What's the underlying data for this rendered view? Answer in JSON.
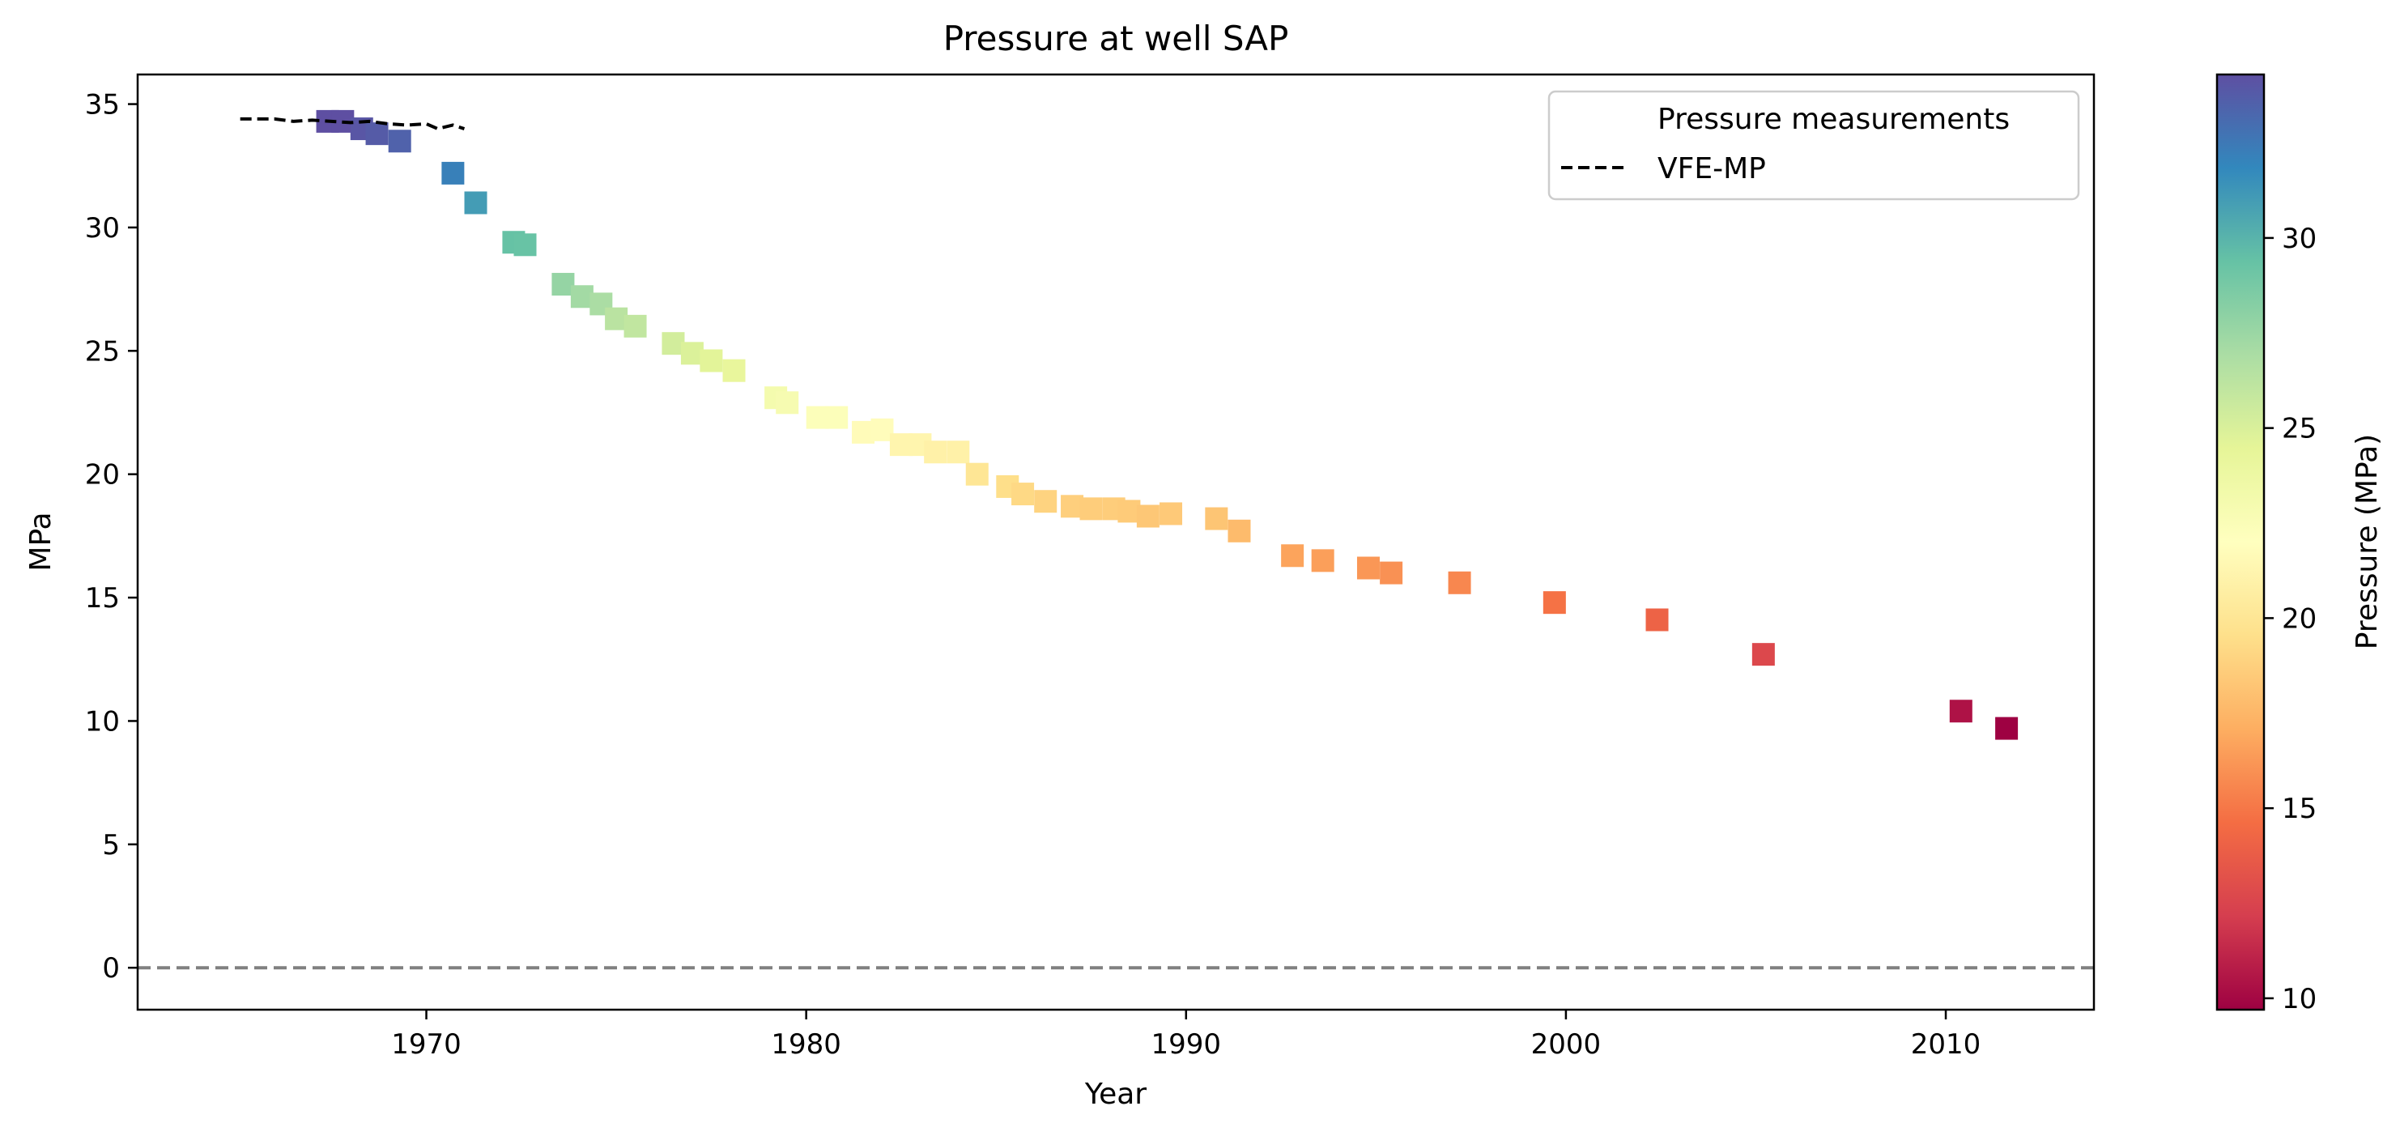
{
  "chart_data": {
    "type": "scatter",
    "title": "Pressure at well SAP",
    "xlabel": "Year",
    "ylabel": "MPa",
    "xlim": [
      1962.4,
      2013.9
    ],
    "ylim": [
      -1.7,
      36.2
    ],
    "xticks": [
      1970,
      1980,
      1990,
      2000,
      2010
    ],
    "yticks": [
      0,
      5,
      10,
      15,
      20,
      25,
      30,
      35
    ],
    "grid": false,
    "legend": {
      "placement": "top-right",
      "entries": [
        {
          "label": "Pressure measurements",
          "marker": "none"
        },
        {
          "label": "VFE-MP",
          "style": "dashed",
          "color": "#000000"
        }
      ]
    },
    "colorbar": {
      "label": "Pressure (MPa)",
      "colormap": "Spectral",
      "range": [
        9.7,
        34.3
      ],
      "ticks": [
        10,
        15,
        20,
        25,
        30
      ]
    },
    "reference_line": {
      "y": 0,
      "style": "dashed",
      "color": "#808080"
    },
    "series": [
      {
        "name": "Pressure measurements",
        "type": "scatter",
        "marker": "square",
        "points": [
          [
            1967.4,
            34.3
          ],
          [
            1967.8,
            34.3
          ],
          [
            1968.3,
            34.0
          ],
          [
            1968.7,
            33.8
          ],
          [
            1969.3,
            33.5
          ],
          [
            1970.7,
            32.2
          ],
          [
            1971.3,
            31.0
          ],
          [
            1972.3,
            29.4
          ],
          [
            1972.6,
            29.3
          ],
          [
            1973.6,
            27.7
          ],
          [
            1974.1,
            27.2
          ],
          [
            1974.6,
            26.9
          ],
          [
            1975.0,
            26.3
          ],
          [
            1975.5,
            26.0
          ],
          [
            1976.5,
            25.3
          ],
          [
            1977.0,
            24.9
          ],
          [
            1977.5,
            24.6
          ],
          [
            1978.1,
            24.2
          ],
          [
            1979.2,
            23.1
          ],
          [
            1979.5,
            22.9
          ],
          [
            1980.3,
            22.3
          ],
          [
            1980.8,
            22.3
          ],
          [
            1981.5,
            21.7
          ],
          [
            1982.0,
            21.8
          ],
          [
            1982.5,
            21.2
          ],
          [
            1983.0,
            21.2
          ],
          [
            1983.4,
            20.9
          ],
          [
            1984.0,
            20.9
          ],
          [
            1984.5,
            20.0
          ],
          [
            1985.3,
            19.5
          ],
          [
            1985.7,
            19.2
          ],
          [
            1986.3,
            18.9
          ],
          [
            1987.0,
            18.7
          ],
          [
            1987.5,
            18.6
          ],
          [
            1988.1,
            18.6
          ],
          [
            1988.5,
            18.5
          ],
          [
            1989.0,
            18.3
          ],
          [
            1989.6,
            18.4
          ],
          [
            1990.8,
            18.2
          ],
          [
            1991.4,
            17.7
          ],
          [
            1992.8,
            16.7
          ],
          [
            1993.6,
            16.5
          ],
          [
            1994.8,
            16.2
          ],
          [
            1995.4,
            16.0
          ],
          [
            1997.2,
            15.6
          ],
          [
            1999.7,
            14.8
          ],
          [
            2002.4,
            14.1
          ],
          [
            2005.2,
            12.7
          ],
          [
            2010.4,
            10.4
          ],
          [
            2011.6,
            9.7
          ]
        ]
      },
      {
        "name": "VFE-MP",
        "type": "line",
        "style": "dashed",
        "color": "#000000",
        "points": [
          [
            1965.1,
            34.4
          ],
          [
            1966.0,
            34.4
          ],
          [
            1966.5,
            34.3
          ],
          [
            1967.0,
            34.35
          ],
          [
            1967.5,
            34.3
          ],
          [
            1968.0,
            34.25
          ],
          [
            1968.5,
            34.3
          ],
          [
            1969.0,
            34.2
          ],
          [
            1969.5,
            34.15
          ],
          [
            1970.0,
            34.2
          ],
          [
            1970.3,
            34.0
          ],
          [
            1970.7,
            34.15
          ],
          [
            1971.0,
            34.0
          ]
        ]
      }
    ]
  }
}
